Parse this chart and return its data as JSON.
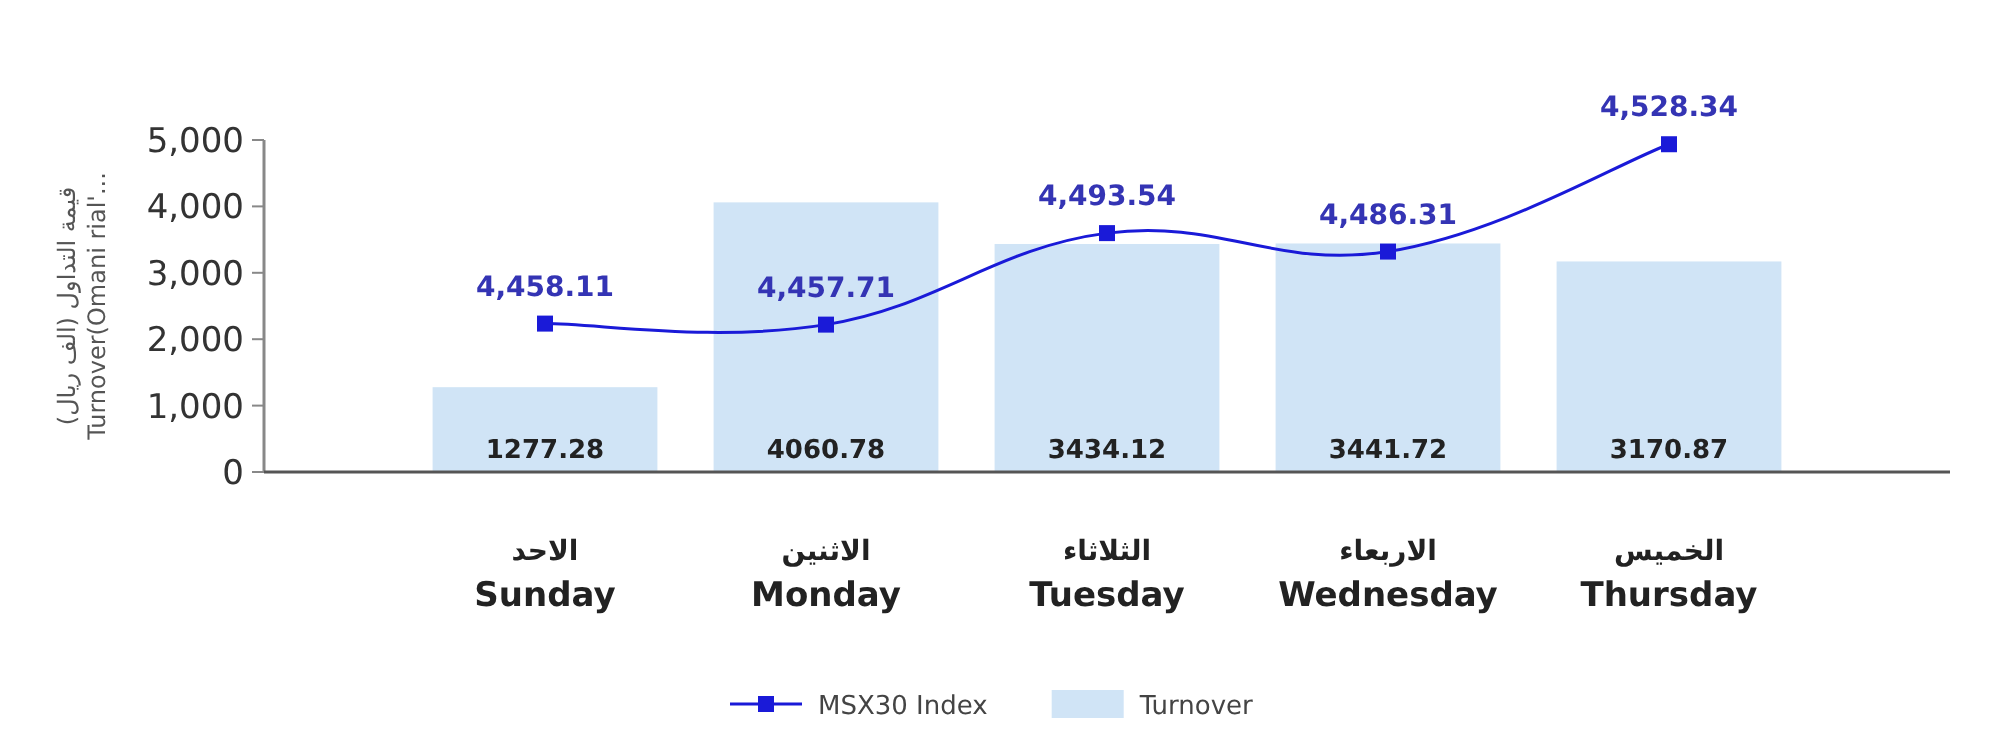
{
  "chart_data": {
    "type": "bar",
    "ylabel": "قيمة التداول (الف ريال)\nTurnover(Omani rial'...",
    "categories": [
      "الاحد\nSunday",
      "الاثنين\nMonday",
      "الثلاثاء\nTuesday",
      "الاربعاء\nWednesday",
      "الخميس\nThursday"
    ],
    "ylim": [
      0,
      5000
    ],
    "yticks": [
      {
        "value": 0,
        "label": "0"
      },
      {
        "value": 1000,
        "label": "1,000"
      },
      {
        "value": 2000,
        "label": "2,000"
      },
      {
        "value": 3000,
        "label": "3,000"
      },
      {
        "value": 4000,
        "label": "4,000"
      },
      {
        "value": 5000,
        "label": "5,000"
      }
    ],
    "y2lim": [
      4400,
      4530
    ],
    "series": [
      {
        "name": "MSX30 Index",
        "type": "line",
        "axis": "y2",
        "color": "#1a1ad8",
        "marker": "square",
        "values": [
          4458.11,
          4457.71,
          4493.54,
          4486.31,
          4528.34
        ],
        "value_labels": [
          "4,458.11",
          "4,457.71",
          "4,493.54",
          "4,486.31",
          "4,528.34"
        ]
      },
      {
        "name": "Turnover",
        "color": "#d0e4f6",
        "values": [
          1277.28,
          4060.78,
          3434.12,
          3441.72,
          3170.87
        ],
        "value_labels": [
          "1277.28",
          "4060.78",
          "3434.12",
          "3441.72",
          "3170.87"
        ]
      }
    ],
    "legend": "bottom"
  }
}
